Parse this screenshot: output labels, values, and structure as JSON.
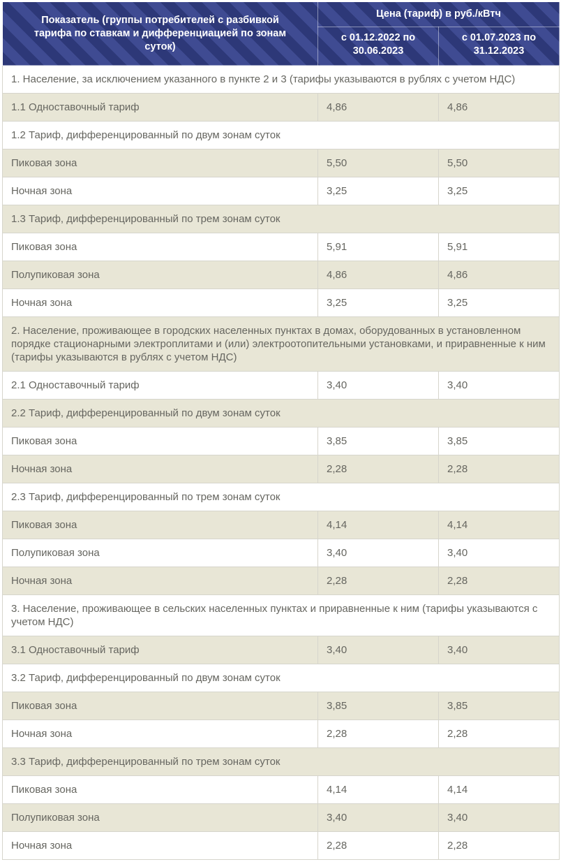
{
  "table": {
    "header": {
      "indicator": "Показатель (группы потребителей с разбивкой тарифа по ставкам и дифференциацией по зонам суток)",
      "price_group": "Цена (тариф) в руб./кВтч",
      "period_1": "с 01.12.2022 по 30.06.2023",
      "period_2": "с 01.07.2023 по 31.12.2023"
    },
    "rows": [
      {
        "type": "section",
        "label": "1. Население, за исключением указанного в пункте 2 и 3 (тарифы указываются в рублях с учетом НДС)"
      },
      {
        "type": "data",
        "label": "1.1 Одноставочный тариф",
        "v1": "4,86",
        "v2": "4,86"
      },
      {
        "type": "subsection",
        "label": "1.2 Тариф, дифференцированный по двум зонам суток"
      },
      {
        "type": "data",
        "label": "Пиковая зона",
        "v1": "5,50",
        "v2": "5,50"
      },
      {
        "type": "data",
        "label": "Ночная зона",
        "v1": "3,25",
        "v2": "3,25"
      },
      {
        "type": "subsection",
        "label": "1.3 Тариф, дифференцированный по трем зонам суток"
      },
      {
        "type": "data",
        "label": "Пиковая зона",
        "v1": "5,91",
        "v2": "5,91"
      },
      {
        "type": "data",
        "label": "Полупиковая зона",
        "v1": "4,86",
        "v2": "4,86"
      },
      {
        "type": "data",
        "label": "Ночная зона",
        "v1": "3,25",
        "v2": "3,25"
      },
      {
        "type": "section",
        "label": "2. Население, проживающее в городских населенных пунктах в домах, оборудованных в установленном порядке стационарными электроплитами и (или) электроотопительными установками, и приравненные к ним (тарифы указываются в рублях с учетом НДС)"
      },
      {
        "type": "data",
        "label": "2.1 Одноставочный тариф",
        "v1": "3,40",
        "v2": "3,40"
      },
      {
        "type": "subsection",
        "label": "2.2 Тариф, дифференцированный по двум зонам суток"
      },
      {
        "type": "data",
        "label": "Пиковая зона",
        "v1": "3,85",
        "v2": "3,85"
      },
      {
        "type": "data",
        "label": "Ночная зона",
        "v1": "2,28",
        "v2": "2,28"
      },
      {
        "type": "subsection",
        "label": "2.3 Тариф, дифференцированный по трем зонам суток"
      },
      {
        "type": "data",
        "label": "Пиковая зона",
        "v1": "4,14",
        "v2": "4,14"
      },
      {
        "type": "data",
        "label": "Полупиковая зона",
        "v1": "3,40",
        "v2": "3,40"
      },
      {
        "type": "data",
        "label": "Ночная зона",
        "v1": "2,28",
        "v2": "2,28"
      },
      {
        "type": "section",
        "label": "3. Население, проживающее в сельских населенных пунктах и приравненные к ним (тарифы указываются с учетом НДС)"
      },
      {
        "type": "data",
        "label": "3.1 Одноставочный тариф",
        "v1": "3,40",
        "v2": "3,40"
      },
      {
        "type": "subsection",
        "label": "3.2 Тариф, дифференцированный по двум зонам суток"
      },
      {
        "type": "data",
        "label": "Пиковая зона",
        "v1": "3,85",
        "v2": "3,85"
      },
      {
        "type": "data",
        "label": "Ночная зона",
        "v1": "2,28",
        "v2": "2,28"
      },
      {
        "type": "subsection",
        "label": "3.3 Тариф, дифференцированный по трем зонам суток"
      },
      {
        "type": "data",
        "label": "Пиковая зона",
        "v1": "4,14",
        "v2": "4,14"
      },
      {
        "type": "data",
        "label": "Полупиковая зона",
        "v1": "3,40",
        "v2": "3,40"
      },
      {
        "type": "data",
        "label": "Ночная зона",
        "v1": "2,28",
        "v2": "2,28"
      }
    ]
  },
  "colors": {
    "header_stripe_dark": "#2d3878",
    "header_stripe_light": "#3f4b92",
    "header_text": "#ffffff",
    "row_background": "#ffffff",
    "row_alt_background": "#e8e6d6",
    "body_text": "#666660",
    "border": "#d6d5cc"
  }
}
